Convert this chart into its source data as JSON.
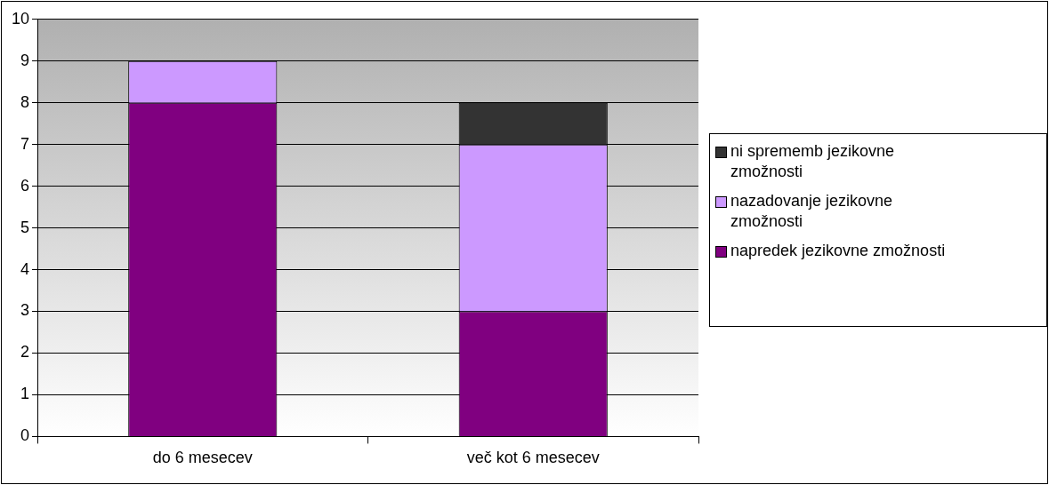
{
  "chart_data": {
    "type": "bar",
    "stacked": true,
    "categories": [
      "do 6 mesecev",
      "več kot 6 mesecev"
    ],
    "series": [
      {
        "name": "napredek jezikovne zmožnosti",
        "color": "#800080",
        "values": [
          8,
          3
        ]
      },
      {
        "name": "nazadovanje jezikovne zmožnosti",
        "color": "#cc99ff",
        "values": [
          1,
          4
        ]
      },
      {
        "name": "ni sprememb jezikovne zmožnosti",
        "color": "#333333",
        "values": [
          0,
          1
        ]
      }
    ],
    "ylim": [
      0,
      10
    ],
    "yticks": [
      0,
      1,
      2,
      3,
      4,
      5,
      6,
      7,
      8,
      9,
      10
    ],
    "grid": "y",
    "legend": "right"
  }
}
